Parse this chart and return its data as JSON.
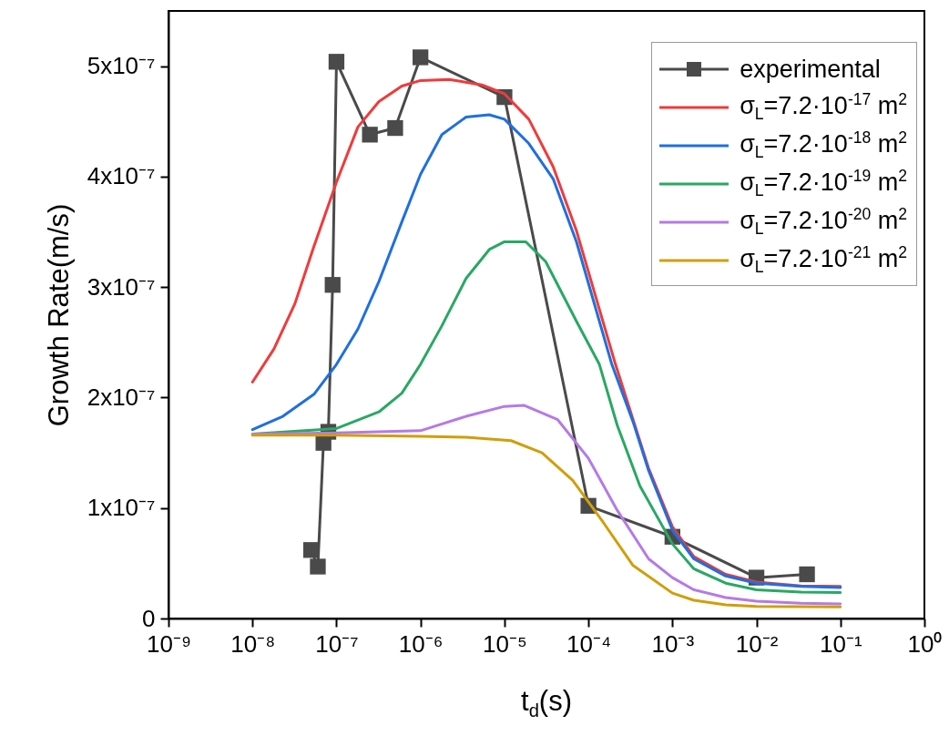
{
  "chart_data": {
    "type": "line",
    "xlabel": "t$_{d}$(s)",
    "ylabel": "Growth Rate(m/s)",
    "log": "x",
    "grid": false,
    "legend": "top right",
    "line_style": "solid",
    "xlim": [
      1e-09,
      1
    ],
    "xticks": [
      {
        "value": 1e-09,
        "label": "10⁻⁹"
      },
      {
        "value": 1e-08,
        "label": "10⁻⁸"
      },
      {
        "value": 1e-07,
        "label": "10⁻⁷"
      },
      {
        "value": 1e-06,
        "label": "10⁻⁶"
      },
      {
        "value": 1e-05,
        "label": "10⁻⁵"
      },
      {
        "value": 0.0001,
        "label": "10⁻⁴"
      },
      {
        "value": 0.001,
        "label": "10⁻³"
      },
      {
        "value": 0.01,
        "label": "10⁻²"
      },
      {
        "value": 0.1,
        "label": "10⁻¹"
      },
      {
        "value": 1,
        "label": "10⁰"
      }
    ],
    "ylim": [
      0,
      5.5e-07
    ],
    "yticks": [
      0,
      {
        "value": 1e-07,
        "label": "1x10⁻⁷"
      },
      {
        "value": 2e-07,
        "label": "2x10⁻⁷"
      },
      {
        "value": 3e-07,
        "label": "3x10⁻⁷"
      },
      {
        "value": 4e-07,
        "label": "4x10⁻⁷"
      },
      {
        "value": 5e-07,
        "label": "5x10⁻⁷"
      }
    ],
    "series": [
      {
        "name": "experimental",
        "color": "#4a4a4a",
        "marker": "square",
        "x": [
          5e-08,
          6e-08,
          7e-08,
          8e-08,
          9e-08,
          1e-07,
          2.5e-07,
          5e-07,
          1e-06,
          1e-05,
          0.0001,
          0.001,
          0.01,
          0.04
        ],
        "values": [
          6.2e-08,
          4.7e-08,
          1.59e-07,
          1.69e-07,
          3.02e-07,
          5.04e-07,
          4.38e-07,
          4.44e-07,
          5.08e-07,
          4.72e-07,
          1.02e-07,
          7.4e-08,
          3.7e-08,
          4e-08
        ]
      },
      {
        "name": "σ$_{L}$=7.2·10$^{-17}$ m$^{2}$",
        "color": "#ef3b3b",
        "marker": "none",
        "x": [
          1e-08,
          1.8e-08,
          3.2e-08,
          5.4e-08,
          1e-07,
          1.8e-07,
          3.2e-07,
          6e-07,
          1e-06,
          2.2e-06,
          5.4e-06,
          1e-05,
          1.95e-05,
          3.8e-05,
          7.2e-05,
          0.00021,
          0.00034,
          0.00052,
          0.001,
          0.0018,
          0.0043,
          0.01,
          0.034,
          0.1
        ],
        "values": [
          2.14e-07,
          2.44e-07,
          2.85e-07,
          3.37e-07,
          3.95e-07,
          4.45e-07,
          4.68e-07,
          4.82e-07,
          4.87e-07,
          4.88e-07,
          4.83e-07,
          4.75e-07,
          4.52e-07,
          4.09e-07,
          3.51e-07,
          2.3e-07,
          1.8e-07,
          1.36e-07,
          8.3e-08,
          5.6e-08,
          4e-08,
          3.3e-08,
          2.95e-08,
          2.9e-08
        ]
      },
      {
        "name": "σ$_{L}$=7.2·10$^{-18}$ m$^{2}$",
        "color": "#1f6fe0",
        "marker": "none",
        "x": [
          1e-08,
          2.3e-08,
          5.4e-08,
          1e-07,
          1.8e-07,
          3.2e-07,
          6e-07,
          1e-06,
          1.8e-06,
          3.5e-06,
          6.6e-06,
          1e-05,
          1.95e-05,
          3.8e-05,
          7.2e-05,
          0.00019,
          0.00034,
          0.00052,
          0.001,
          0.0018,
          0.0043,
          0.01,
          0.034,
          0.1
        ],
        "values": [
          1.71e-07,
          1.83e-07,
          2.03e-07,
          2.3e-07,
          2.62e-07,
          3.05e-07,
          3.59e-07,
          4.02e-07,
          4.38e-07,
          4.54e-07,
          4.56e-07,
          4.52e-07,
          4.3e-07,
          3.98e-07,
          3.41e-07,
          2.3e-07,
          1.78e-07,
          1.34e-07,
          8e-08,
          5.4e-08,
          3.85e-08,
          3.2e-08,
          2.9e-08,
          2.8e-08
        ]
      },
      {
        "name": "σ$_{L}$=7.2·10$^{-19}$ m$^{2}$",
        "color": "#29a864",
        "marker": "none",
        "x": [
          1e-08,
          1e-07,
          3.2e-07,
          6e-07,
          1e-06,
          1.8e-06,
          3.5e-06,
          6.6e-06,
          1e-05,
          1.8e-05,
          3.1e-05,
          7.2e-05,
          0.000135,
          0.00022,
          0.00041,
          0.001,
          0.0018,
          0.0043,
          0.01,
          0.034,
          0.1
        ],
        "values": [
          1.67e-07,
          1.72e-07,
          1.87e-07,
          2.04e-07,
          2.3e-07,
          2.65e-07,
          3.08e-07,
          3.34e-07,
          3.41e-07,
          3.41e-07,
          3.23e-07,
          2.69e-07,
          2.3e-07,
          1.75e-07,
          1.2e-07,
          6.75e-08,
          4.5e-08,
          3.2e-08,
          2.6e-08,
          2.4e-08,
          2.35e-08
        ]
      },
      {
        "name": "σ$_{L}$=7.2·10$^{-20}$ m$^{2}$",
        "color": "#b57ae6",
        "marker": "none",
        "x": [
          1e-08,
          1e-07,
          1e-06,
          3.5e-06,
          1e-05,
          1.7e-05,
          4.3e-05,
          0.0001,
          0.00022,
          0.00052,
          0.001,
          0.0018,
          0.0043,
          0.01,
          0.034,
          0.1
        ],
        "values": [
          1.67e-07,
          1.68e-07,
          1.7e-07,
          1.83e-07,
          1.92e-07,
          1.93e-07,
          1.8e-07,
          1.45e-07,
          9.8e-08,
          5.4e-08,
          3.7e-08,
          2.6e-08,
          1.9e-08,
          1.57e-08,
          1.38e-08,
          1.32e-08
        ]
      },
      {
        "name": "σ$_{L}$=7.2·10$^{-21}$ m$^{2}$",
        "color": "#d19e0a",
        "marker": "none",
        "x": [
          1e-08,
          1e-07,
          1e-06,
          3.5e-06,
          1.2e-05,
          2.8e-05,
          6.5e-05,
          0.00015,
          0.00034,
          0.001,
          0.0018,
          0.0043,
          0.01,
          0.1
        ],
        "values": [
          1.66e-07,
          1.66e-07,
          1.65e-07,
          1.64e-07,
          1.61e-07,
          1.5e-07,
          1.25e-07,
          8.7e-08,
          4.8e-08,
          2.3e-08,
          1.65e-08,
          1.24e-08,
          1.1e-08,
          1.05e-08
        ]
      }
    ]
  }
}
